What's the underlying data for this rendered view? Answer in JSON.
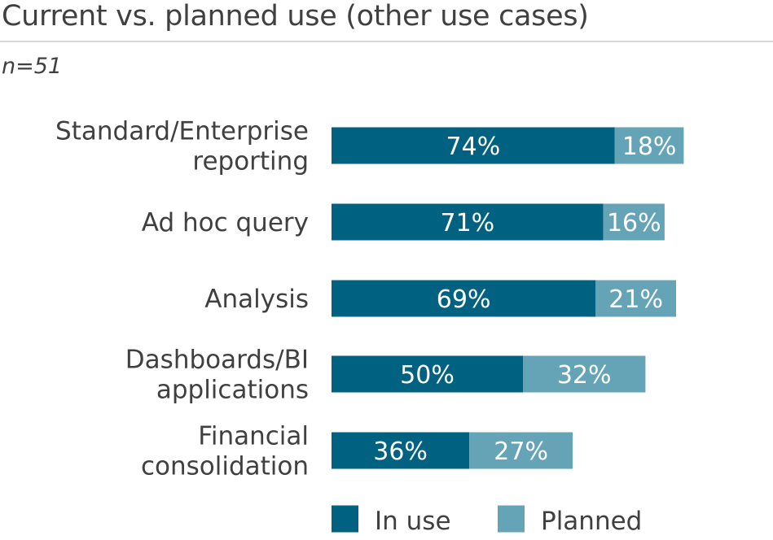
{
  "chart_data": {
    "type": "bar",
    "orientation": "horizontal",
    "stacked": true,
    "title": "Current vs. planned use (other use cases)",
    "subtitle": "n=51",
    "categories": [
      [
        "Standard/Enterprise",
        "reporting"
      ],
      [
        "Ad hoc query"
      ],
      [
        "Analysis"
      ],
      [
        "Dashboards/BI",
        "applications"
      ],
      [
        "Financial",
        "consolidation"
      ]
    ],
    "series": [
      {
        "name": "In use",
        "color": "#006280",
        "values": [
          74,
          71,
          69,
          50,
          36
        ]
      },
      {
        "name": "Planned",
        "color": "#65a4b6",
        "values": [
          18,
          16,
          21,
          32,
          27
        ]
      }
    ],
    "value_suffix": "%",
    "xlim": [
      0,
      100
    ],
    "grid": false,
    "legend_position": "bottom"
  }
}
